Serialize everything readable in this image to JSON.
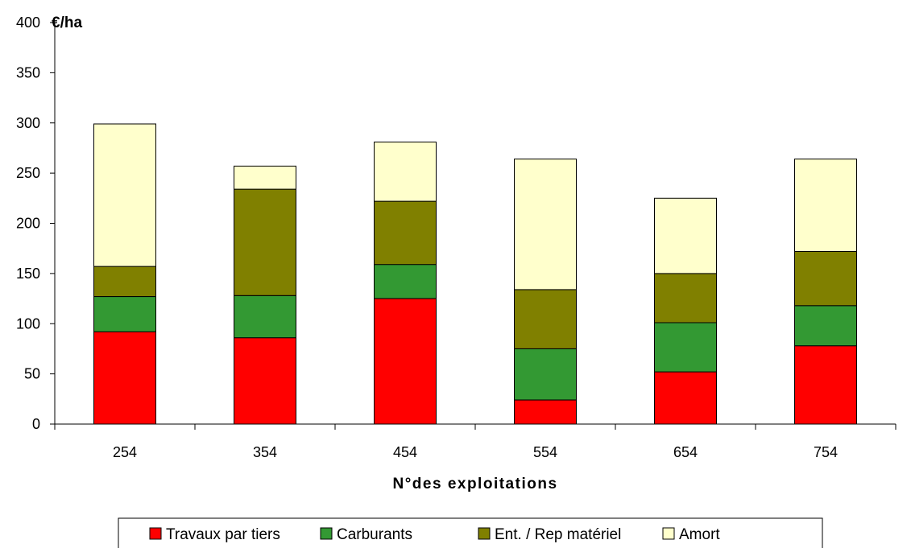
{
  "chart_data": {
    "type": "bar",
    "stacked": true,
    "unit_label": "€/ha",
    "xlabel": "N°des exploitations",
    "ylabel": "",
    "title": "",
    "ylim": [
      0,
      400
    ],
    "yticks": [
      0,
      50,
      100,
      150,
      200,
      250,
      300,
      350,
      400
    ],
    "categories": [
      "254",
      "354",
      "454",
      "554",
      "654",
      "754"
    ],
    "series": [
      {
        "name": "Travaux par tiers",
        "color": "#ff0000",
        "values": [
          92,
          86,
          125,
          24,
          52,
          78
        ]
      },
      {
        "name": "Carburants",
        "color": "#339933",
        "values": [
          35,
          42,
          34,
          51,
          49,
          40
        ]
      },
      {
        "name": "Ent. / Rep matériel",
        "color": "#808000",
        "values": [
          30,
          106,
          63,
          59,
          49,
          54
        ]
      },
      {
        "name": "Amort",
        "color": "#ffffcc",
        "values": [
          142,
          23,
          59,
          130,
          75,
          92
        ]
      }
    ],
    "grid": false,
    "legend_position": "bottom"
  }
}
